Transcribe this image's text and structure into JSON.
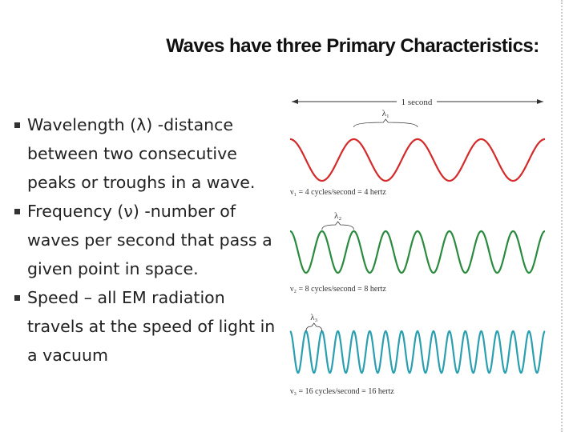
{
  "title": "Waves have three Primary Characteristics:",
  "bullets": [
    "Wavelength (λ) -distance between two consecutive peaks or troughs in a wave.",
    "Frequency (ν) -number of waves per second that pass a given point in space.",
    "Speed – all EM radiation travels at the speed of light in a vacuum"
  ],
  "diagram": {
    "time_label": "1 second",
    "waves": [
      {
        "wavelength_label": "λ₁",
        "frequency_label": "ν₁ = 4 cycles/second = 4 hertz",
        "cycles": 4,
        "color": "#d42a2a"
      },
      {
        "wavelength_label": "λ₂",
        "frequency_label": "ν₂ = 8 cycles/second = 8 hertz",
        "cycles": 8,
        "color": "#2a8a3e"
      },
      {
        "wavelength_label": "λ₃",
        "frequency_label": "ν₃ = 16 cycles/second = 16 hertz",
        "cycles": 16,
        "color": "#2a9fb0"
      }
    ]
  }
}
